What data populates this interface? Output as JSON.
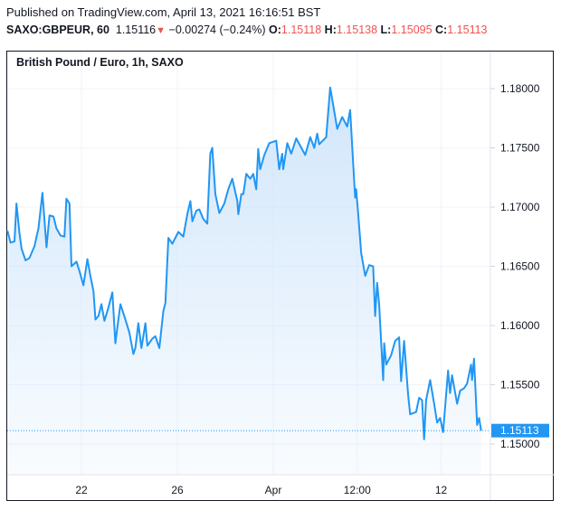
{
  "header": {
    "published": "Published on TradingView.com, April 13, 2021 16:16:51 BST",
    "symbol": "SAXO:GBPEUR, 60",
    "price": "1.15116",
    "change_icon": "triangle-down-icon",
    "change_glyph": "▼",
    "change": "−0.00274 (−0.24%)",
    "o_label": "O:",
    "o": "1.15118",
    "h_label": "H:",
    "h": "1.15138",
    "l_label": "L:",
    "l": "1.15095",
    "c_label": "C:",
    "c": "1.15113"
  },
  "chart_data": {
    "type": "area",
    "title": "British Pound / Euro, 1h, SAXO",
    "line_color": "#2196f3",
    "fill_color": "#cfe5fb",
    "down_color": "#ef5350",
    "grid": true,
    "y_ticks": [
      "1.18000",
      "1.17500",
      "1.17000",
      "1.16500",
      "1.16000",
      "1.15500",
      "1.15000"
    ],
    "x_ticks": [
      {
        "label": "22",
        "at": "03-22 00:00"
      },
      {
        "label": "26",
        "at": "03-26 00:00"
      },
      {
        "label": "Apr",
        "at": "04-01 00:00"
      },
      {
        "label": "12:00",
        "at": "04-06 12:00"
      },
      {
        "label": "12",
        "at": "04-12 00:00"
      }
    ],
    "last_price_label": "1.15113",
    "last_price": 1.15113,
    "points": [
      [
        "03-16 22:00",
        1.168
      ],
      [
        "03-17 01:00",
        1.167
      ],
      [
        "03-17 05:00",
        1.1671
      ],
      [
        "03-17 07:00",
        1.1703
      ],
      [
        "03-17 10:00",
        1.1678
      ],
      [
        "03-17 12:00",
        1.1665
      ],
      [
        "03-17 16:00",
        1.1655
      ],
      [
        "03-17 20:00",
        1.1657
      ],
      [
        "03-18 01:00",
        1.1667
      ],
      [
        "03-18 05:00",
        1.1682
      ],
      [
        "03-18 09:00",
        1.1712
      ],
      [
        "03-18 13:00",
        1.1666
      ],
      [
        "03-18 16:00",
        1.1693
      ],
      [
        "03-18 20:00",
        1.1692
      ],
      [
        "03-18 23:00",
        1.1682
      ],
      [
        "03-19 03:00",
        1.1676
      ],
      [
        "03-19 07:00",
        1.1675
      ],
      [
        "03-19 09:00",
        1.1707
      ],
      [
        "03-19 12:00",
        1.1703
      ],
      [
        "03-19 14:00",
        1.165
      ],
      [
        "03-19 19:00",
        1.1654
      ],
      [
        "03-19 22:00",
        1.1646
      ],
      [
        "03-22 02:00",
        1.1634
      ],
      [
        "03-22 06:00",
        1.1656
      ],
      [
        "03-22 09:00",
        1.1642
      ],
      [
        "03-22 12:00",
        1.1629
      ],
      [
        "03-22 14:00",
        1.1605
      ],
      [
        "03-22 17:00",
        1.1608
      ],
      [
        "03-22 20:00",
        1.1618
      ],
      [
        "03-22 23:00",
        1.1604
      ],
      [
        "03-23 03:00",
        1.1615
      ],
      [
        "03-23 07:00",
        1.1628
      ],
      [
        "03-23 10:00",
        1.1585
      ],
      [
        "03-23 12:00",
        1.1599
      ],
      [
        "03-23 15:00",
        1.1618
      ],
      [
        "03-23 20:00",
        1.1605
      ],
      [
        "03-24 00:00",
        1.1594
      ],
      [
        "03-24 04:00",
        1.1576
      ],
      [
        "03-24 06:00",
        1.1581
      ],
      [
        "03-24 09:00",
        1.1602
      ],
      [
        "03-24 12:00",
        1.1581
      ],
      [
        "03-24 16:00",
        1.1602
      ],
      [
        "03-24 18:00",
        1.1583
      ],
      [
        "03-24 23:00",
        1.1589
      ],
      [
        "03-25 02:00",
        1.1591
      ],
      [
        "03-25 06:00",
        1.1581
      ],
      [
        "03-25 10:00",
        1.1612
      ],
      [
        "03-25 12:00",
        1.1619
      ],
      [
        "03-25 15:00",
        1.1674
      ],
      [
        "03-25 19:00",
        1.1669
      ],
      [
        "03-26 01:00",
        1.1679
      ],
      [
        "03-26 06:00",
        1.1675
      ],
      [
        "03-26 10:00",
        1.1694
      ],
      [
        "03-26 13:00",
        1.1705
      ],
      [
        "03-26 15:00",
        1.1688
      ],
      [
        "03-26 19:00",
        1.1697
      ],
      [
        "03-26 22:00",
        1.1698
      ],
      [
        "03-29 02:00",
        1.169
      ],
      [
        "03-29 06:00",
        1.1686
      ],
      [
        "03-29 09:00",
        1.1745
      ],
      [
        "03-29 11:00",
        1.175
      ],
      [
        "03-29 14:00",
        1.1711
      ],
      [
        "03-29 18:00",
        1.1695
      ],
      [
        "03-29 23:00",
        1.1703
      ],
      [
        "03-30 03:00",
        1.1715
      ],
      [
        "03-30 07:00",
        1.1724
      ],
      [
        "03-30 12:00",
        1.1705
      ],
      [
        "03-30 13:00",
        1.1694
      ],
      [
        "03-30 16:00",
        1.1711
      ],
      [
        "03-30 18:00",
        1.1711
      ],
      [
        "03-30 21:00",
        1.1728
      ],
      [
        "03-31 01:00",
        1.1724
      ],
      [
        "03-31 04:00",
        1.1728
      ],
      [
        "03-31 07:00",
        1.1715
      ],
      [
        "03-31 09:00",
        1.1749
      ],
      [
        "03-31 11:00",
        1.1732
      ],
      [
        "03-31 15:00",
        1.1744
      ],
      [
        "03-31 20:00",
        1.1754
      ],
      [
        "04-01 03:00",
        1.1756
      ],
      [
        "04-01 06:00",
        1.1732
      ],
      [
        "04-01 09:00",
        1.1745
      ],
      [
        "04-01 10:00",
        1.1732
      ],
      [
        "04-01 14:00",
        1.1754
      ],
      [
        "04-01 18:00",
        1.1745
      ],
      [
        "04-01 23:00",
        1.1758
      ],
      [
        "04-02 08:00",
        1.1744
      ],
      [
        "04-02 13:00",
        1.1759
      ],
      [
        "04-02 17:00",
        1.175
      ],
      [
        "04-02 20:00",
        1.1762
      ],
      [
        "04-02 22:00",
        1.1753
      ],
      [
        "04-05 05:00",
        1.1759
      ],
      [
        "04-05 09:00",
        1.1801
      ],
      [
        "04-05 14:00",
        1.1776
      ],
      [
        "04-05 16:00",
        1.1766
      ],
      [
        "04-05 21:00",
        1.1776
      ],
      [
        "04-06 02:00",
        1.1768
      ],
      [
        "04-06 05:00",
        1.1782
      ],
      [
        "04-06 08:00",
        1.1737
      ],
      [
        "04-06 10:00",
        1.1708
      ],
      [
        "04-06 11:00",
        1.1715
      ],
      [
        "04-06 13:00",
        1.1694
      ],
      [
        "04-06 16:00",
        1.1661
      ],
      [
        "04-06 20:00",
        1.1642
      ],
      [
        "04-07 00:00",
        1.1651
      ],
      [
        "04-07 04:00",
        1.165
      ],
      [
        "04-07 06:00",
        1.1608
      ],
      [
        "04-07 08:00",
        1.1636
      ],
      [
        "04-07 10:00",
        1.1618
      ],
      [
        "04-07 14:00",
        1.1554
      ],
      [
        "04-07 15:00",
        1.1585
      ],
      [
        "04-07 17:00",
        1.1567
      ],
      [
        "04-07 22:00",
        1.1575
      ],
      [
        "04-08 02:00",
        1.1587
      ],
      [
        "04-08 06:00",
        1.159
      ],
      [
        "04-08 08:00",
        1.1553
      ],
      [
        "04-08 11:00",
        1.1587
      ],
      [
        "04-08 15:00",
        1.1541
      ],
      [
        "04-08 17:00",
        1.1525
      ],
      [
        "04-08 23:00",
        1.1527
      ],
      [
        "04-09 02:00",
        1.1539
      ],
      [
        "04-09 05:00",
        1.1537
      ],
      [
        "04-09 07:00",
        1.1504
      ],
      [
        "04-09 09:00",
        1.1537
      ],
      [
        "04-09 13:00",
        1.1554
      ],
      [
        "04-09 17:00",
        1.1534
      ],
      [
        "04-09 20:00",
        1.1518
      ],
      [
        "04-09 23:00",
        1.1522
      ],
      [
        "04-12 02:00",
        1.151
      ],
      [
        "04-12 07:00",
        1.1562
      ],
      [
        "04-12 09:00",
        1.1543
      ],
      [
        "04-12 11:00",
        1.1558
      ],
      [
        "04-12 16:00",
        1.1534
      ],
      [
        "04-12 19:00",
        1.1545
      ],
      [
        "04-12 23:00",
        1.1547
      ],
      [
        "04-13 02:00",
        1.1551
      ],
      [
        "04-13 06:00",
        1.1567
      ],
      [
        "04-13 07:00",
        1.1554
      ],
      [
        "04-13 09:00",
        1.1572
      ],
      [
        "04-13 12:00",
        1.1516
      ],
      [
        "04-13 14:00",
        1.1522
      ],
      [
        "04-13 16:00",
        1.15113
      ]
    ]
  }
}
